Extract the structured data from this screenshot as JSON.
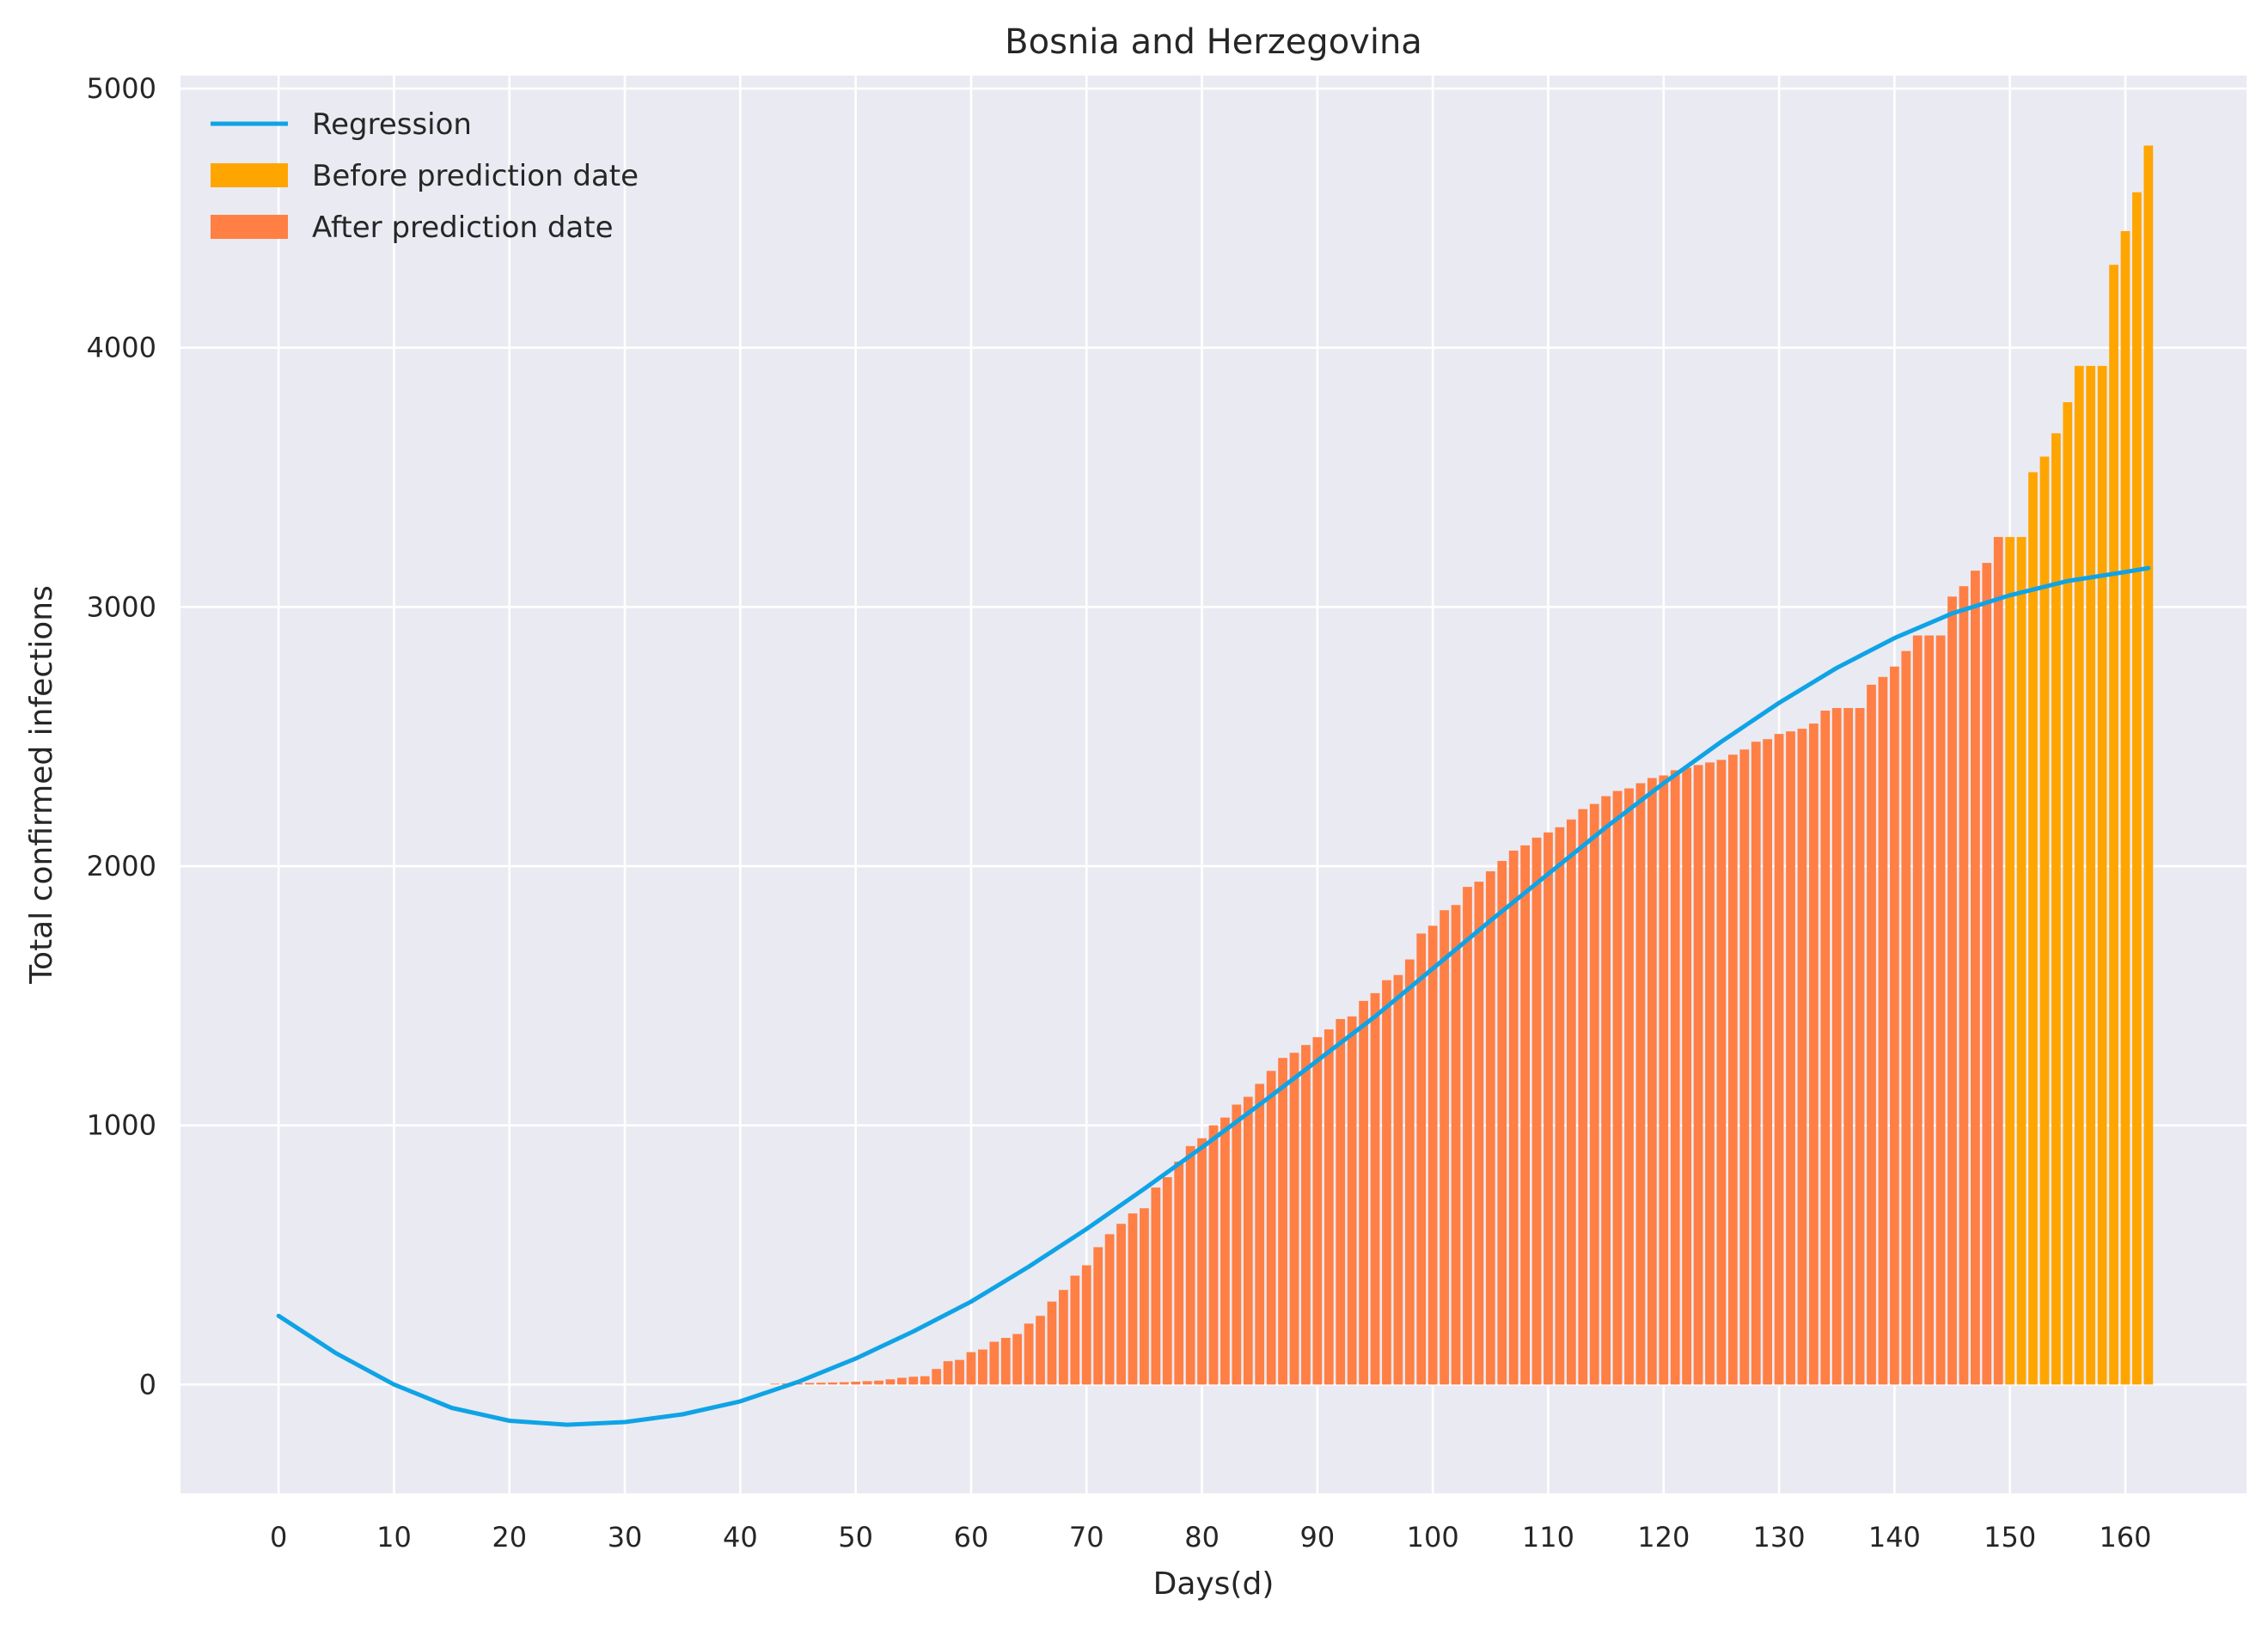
{
  "chart_data": {
    "type": "bar",
    "title": "Bosnia and Herzegovina",
    "xlabel": "Days(d)",
    "ylabel": "Total confirmed infections",
    "xlim": [
      -8.5,
      170.5
    ],
    "ylim": [
      -420,
      5050
    ],
    "xticks": [
      0,
      10,
      20,
      30,
      40,
      50,
      60,
      70,
      80,
      90,
      100,
      110,
      120,
      130,
      140,
      150,
      160
    ],
    "yticks": [
      0,
      1000,
      2000,
      3000,
      4000,
      5000
    ],
    "grid": true,
    "legend_position": "upper left",
    "series": [
      {
        "name": "Regression",
        "type": "line",
        "color": "#0fa3e6",
        "x": [
          0,
          5,
          10,
          15,
          20,
          25,
          30,
          35,
          40,
          45,
          50,
          55,
          60,
          65,
          70,
          75,
          80,
          85,
          90,
          95,
          100,
          105,
          110,
          115,
          120,
          125,
          130,
          135,
          140,
          145,
          150,
          155,
          160,
          162
        ],
        "y": [
          265,
          120,
          0,
          -90,
          -140,
          -155,
          -145,
          -115,
          -65,
          10,
          100,
          205,
          320,
          455,
          600,
          755,
          915,
          1080,
          1250,
          1420,
          1605,
          1790,
          1970,
          2150,
          2320,
          2480,
          2630,
          2765,
          2880,
          2975,
          3045,
          3100,
          3135,
          3150
        ]
      },
      {
        "name": "After prediction date",
        "type": "bar",
        "color": "#ff7f45",
        "x_start": 0,
        "values": [
          0,
          0,
          0,
          0,
          0,
          0,
          0,
          0,
          0,
          0,
          0,
          0,
          0,
          0,
          0,
          0,
          0,
          0,
          0,
          0,
          0,
          0,
          0,
          0,
          0,
          0,
          0,
          0,
          0,
          0,
          0,
          0,
          0,
          0,
          0,
          0,
          0,
          0,
          0,
          0,
          0,
          0,
          0,
          3,
          4,
          5,
          6,
          7,
          8,
          9,
          11,
          13,
          15,
          20,
          26,
          30,
          32,
          60,
          90,
          95,
          125,
          135,
          165,
          180,
          195,
          235,
          265,
          320,
          365,
          420,
          460,
          530,
          580,
          620,
          660,
          680,
          760,
          800,
          860,
          920,
          950,
          1000,
          1030,
          1080,
          1110,
          1160,
          1210,
          1260,
          1280,
          1310,
          1340,
          1370,
          1410,
          1420,
          1480,
          1510,
          1560,
          1580,
          1640,
          1740,
          1770,
          1830,
          1850,
          1920,
          1940,
          1980,
          2020,
          2060,
          2080,
          2110,
          2130,
          2150,
          2180,
          2220,
          2240,
          2270,
          2290,
          2300,
          2320,
          2340,
          2350,
          2370,
          2380,
          2390,
          2400,
          2410,
          2430,
          2450,
          2480,
          2490,
          2510,
          2520,
          2530,
          2550,
          2600,
          2610,
          2610,
          2610,
          2700,
          2730,
          2770,
          2830,
          2890,
          2890,
          2890,
          3040,
          3080,
          3140,
          3170,
          3270
        ]
      },
      {
        "name": "Before prediction date",
        "type": "bar",
        "color": "#ffa500",
        "x_start": 150,
        "values": [
          3270,
          3270,
          3520,
          3580,
          3670,
          3790,
          3930,
          3930,
          3930,
          4320,
          4450,
          4600,
          4780
        ]
      }
    ]
  },
  "legend": {
    "regression": "Regression",
    "before": "Before prediction date",
    "after": "After prediction date",
    "regression_color": "#0fa3e6",
    "before_color": "#ffa500",
    "after_color": "#ff7f45"
  },
  "style": {
    "plot_background": "#eaeaf2",
    "grid_color": "#ffffff"
  }
}
